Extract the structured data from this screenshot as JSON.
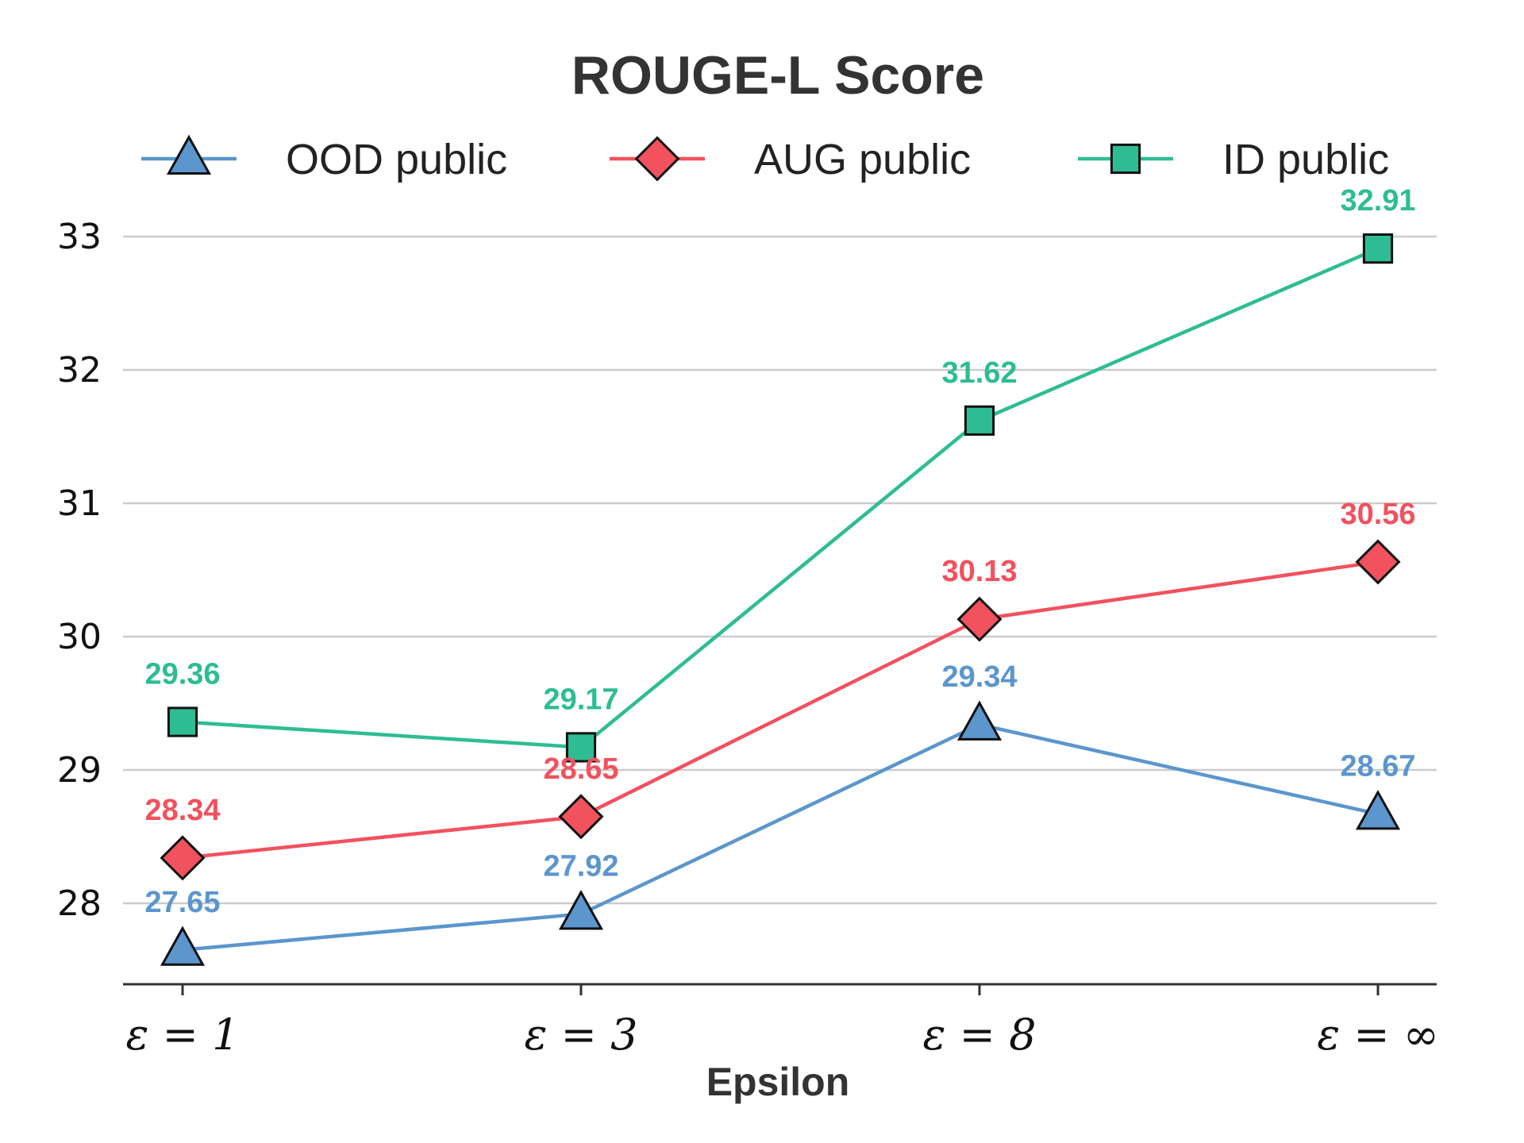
{
  "chart_data": {
    "type": "line",
    "title": "ROUGE-L Score",
    "xlabel": "Epsilon",
    "ylabel": "",
    "categories": [
      "ε = 1",
      "ε = 3",
      "ε = 8",
      "ε = ∞"
    ],
    "ylim": [
      27.4,
      33.2
    ],
    "yticks": [
      28,
      29,
      30,
      31,
      32,
      33
    ],
    "grid": true,
    "legend_position": "top",
    "series": [
      {
        "name": "OOD public",
        "marker": "triangle",
        "color": "#5b96cd",
        "values": [
          27.65,
          27.92,
          29.34,
          28.67
        ],
        "labels": [
          "27.65",
          "27.92",
          "29.34",
          "28.67"
        ]
      },
      {
        "name": "AUG public",
        "marker": "diamond",
        "color": "#f2515e",
        "values": [
          28.34,
          28.65,
          30.13,
          30.56
        ],
        "labels": [
          "28.34",
          "28.65",
          "30.13",
          "30.56"
        ]
      },
      {
        "name": "ID public",
        "marker": "square",
        "color": "#2ebd92",
        "values": [
          29.36,
          29.17,
          31.62,
          32.91
        ],
        "labels": [
          "29.36",
          "29.17",
          "31.62",
          "32.91"
        ]
      }
    ]
  }
}
